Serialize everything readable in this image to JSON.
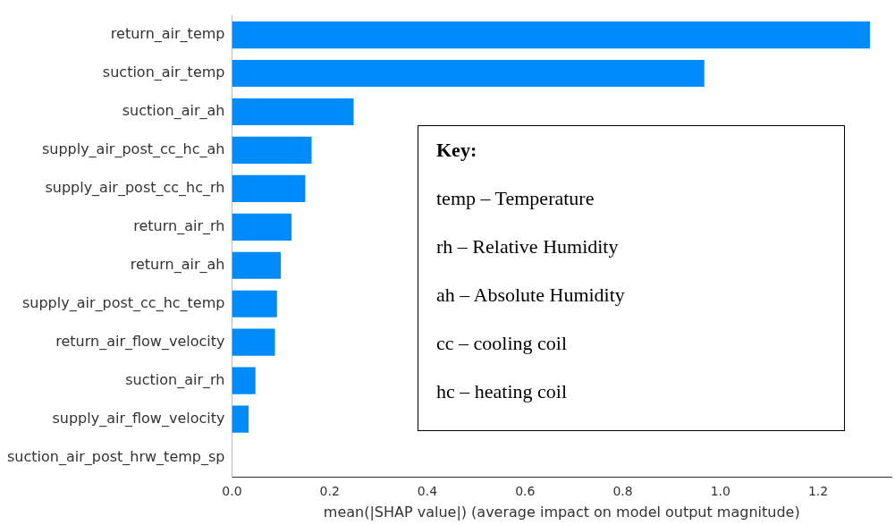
{
  "chart_data": {
    "type": "bar",
    "orientation": "horizontal",
    "xlabel": "mean(|SHAP value|) (average impact on model output magnitude)",
    "categories": [
      "return_air_temp",
      "suction_air_temp",
      "suction_air_ah",
      "supply_air_post_cc_hc_ah",
      "supply_air_post_cc_hc_rh",
      "return_air_rh",
      "return_air_ah",
      "supply_air_post_cc_hc_temp",
      "return_air_flow_velocity",
      "suction_air_rh",
      "supply_air_flow_velocity",
      "suction_air_post_hrw_temp_sp"
    ],
    "values": [
      1.306,
      0.967,
      0.249,
      0.163,
      0.15,
      0.122,
      0.1,
      0.092,
      0.088,
      0.048,
      0.034,
      0
    ],
    "color": "#008bfb",
    "xlim": [
      0,
      1.35
    ],
    "xticks": [
      {
        "value": 0,
        "label": "0.0"
      },
      0.2,
      0.4,
      0.6,
      0.8,
      {
        "value": 1,
        "label": "1.0"
      },
      1.2
    ],
    "grid": false,
    "legend": false,
    "annotations": [
      "Key:",
      "temp – Temperature",
      "rh – Relative Humidity",
      "ah – Absolute Humidity",
      "cc – cooling coil",
      "hc – heating coil"
    ]
  }
}
